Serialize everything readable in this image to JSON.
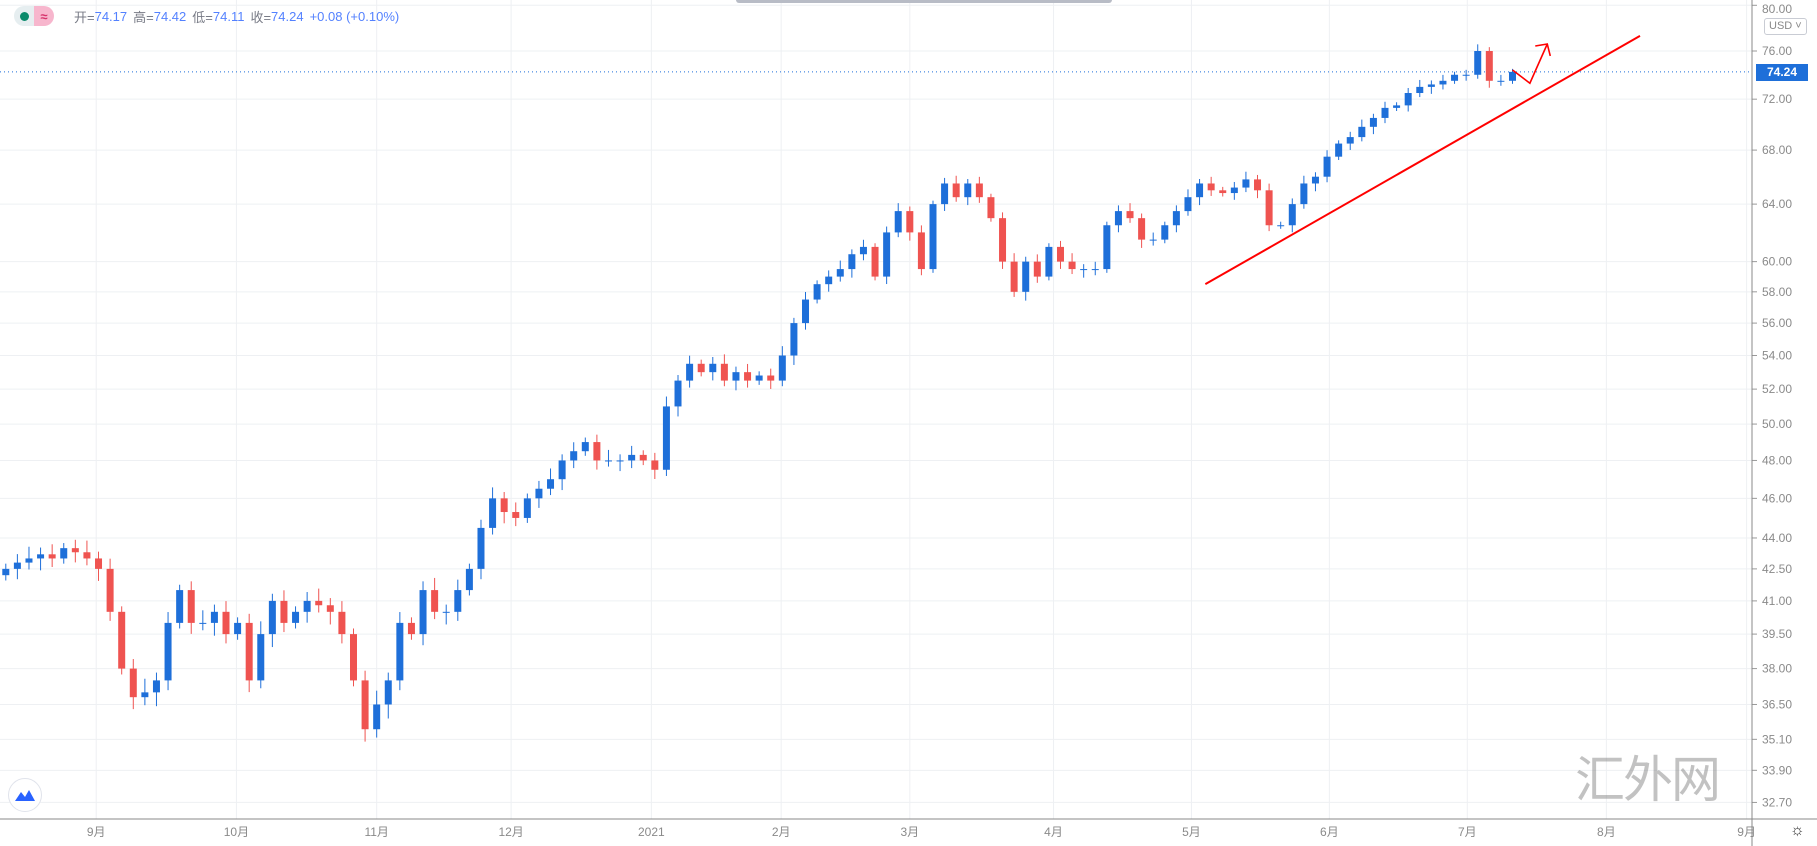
{
  "legend": {
    "open_label": "开=",
    "open": "74.17",
    "high_label": "高=",
    "high": "74.42",
    "low_label": "低=",
    "low": "74.11",
    "close_label": "收=",
    "close": "74.24",
    "change": "+0.08 (+0.10%)",
    "wave_icon": "≈"
  },
  "currency": "USD",
  "last_price_label": "74.24",
  "watermark": "汇外网",
  "settings_icon": "☼",
  "colors": {
    "up": "#1e6fd9",
    "down": "#ef5350",
    "annotation": "#ff0000",
    "grid": "#eef0f3"
  },
  "chart_data": {
    "type": "candlestick",
    "scale": "log",
    "ylim": [
      32.7,
      80
    ],
    "last_price": 74.24,
    "price_ticks": [
      "80.00",
      "76.00",
      "72.00",
      "68.00",
      "64.00",
      "60.00",
      "58.00",
      "56.00",
      "54.00",
      "52.00",
      "50.00",
      "48.00",
      "46.00",
      "44.00",
      "42.50",
      "41.00",
      "39.50",
      "38.00",
      "36.50",
      "35.10",
      "33.90",
      "32.70"
    ],
    "time_ticks": [
      {
        "label": "9月",
        "bar": 7.8
      },
      {
        "label": "10月",
        "bar": 19.9
      },
      {
        "label": "11月",
        "bar": 32
      },
      {
        "label": "12月",
        "bar": 43.6
      },
      {
        "label": "2021",
        "bar": 55.7
      },
      {
        "label": "2月",
        "bar": 66.9
      },
      {
        "label": "3月",
        "bar": 78
      },
      {
        "label": "4月",
        "bar": 90.4
      },
      {
        "label": "5月",
        "bar": 102.3
      },
      {
        "label": "6月",
        "bar": 114.2
      },
      {
        "label": "7月",
        "bar": 126.1
      },
      {
        "label": "8月",
        "bar": 138.1
      },
      {
        "label": "9月",
        "bar": 150.2
      }
    ],
    "closes": [
      42.5,
      42.8,
      43,
      43.2,
      43,
      43.5,
      43.3,
      43,
      42.5,
      40.5,
      38,
      36.8,
      37,
      37.5,
      40,
      41.5,
      40,
      40,
      40.5,
      39.5,
      40,
      37.5,
      39.5,
      41,
      40,
      40.5,
      41,
      40.8,
      40.5,
      39.5,
      37.5,
      35.5,
      36.5,
      37.5,
      40,
      39.5,
      41.5,
      40.5,
      40.5,
      41.5,
      42.5,
      44.5,
      46,
      45.3,
      45,
      46,
      46.5,
      47,
      48,
      48.5,
      49,
      48,
      48,
      48,
      48.3,
      48,
      47.5,
      51,
      52.5,
      53.5,
      53,
      53.5,
      52.5,
      53,
      52.5,
      52.8,
      52.5,
      54,
      56,
      57.5,
      58.5,
      59,
      59.5,
      60.5,
      61,
      59,
      62,
      63.5,
      62,
      59.5,
      64,
      65.5,
      64.5,
      65.5,
      64.5,
      63,
      60,
      58,
      60,
      59,
      61,
      60,
      59.5,
      59.5,
      59.5,
      62.5,
      63.5,
      63,
      61.5,
      61.5,
      62.5,
      63.5,
      64.5,
      65.5,
      65,
      64.8,
      65.2,
      65.8,
      65,
      62.5,
      62.5,
      64,
      65.5,
      66,
      67.5,
      68.5,
      69,
      69.8,
      70.5,
      71.3,
      71.5,
      72.5,
      73,
      73.2,
      73.5,
      74,
      74,
      76,
      73.5,
      73.5,
      74.24
    ],
    "first_open": 42.2,
    "annotations": [
      {
        "type": "trendline",
        "from": {
          "bar": 103.5,
          "price": 58.5
        },
        "to": {
          "bar": 141,
          "price": 77.3
        }
      },
      {
        "type": "arrow",
        "points": [
          {
            "bar": 130,
            "price": 74.4
          },
          {
            "bar": 131.5,
            "price": 73.3
          },
          {
            "bar": 133,
            "price": 76.6
          }
        ]
      }
    ]
  }
}
